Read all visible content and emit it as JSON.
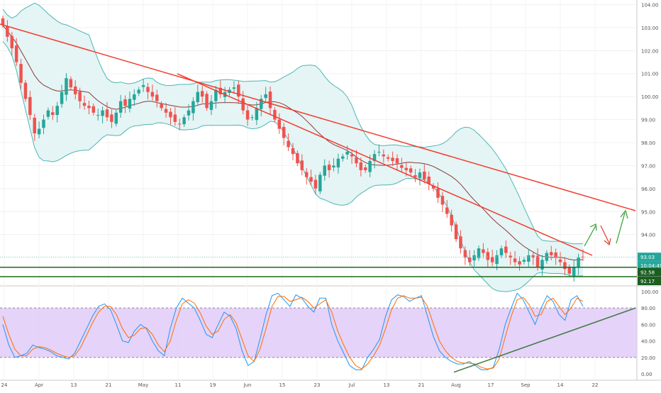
{
  "chart_data": [
    {
      "type": "candlestick",
      "title": "",
      "y_ticks": [
        "104.00",
        "103.00",
        "102.00",
        "101.00",
        "100.00",
        "99.00",
        "98.00",
        "97.00",
        "96.00",
        "95.00",
        "94.00",
        "93.00"
      ],
      "y_range": [
        91.8,
        104.2
      ],
      "x_ticks": [
        "24",
        "Apr",
        "13",
        "21",
        "May",
        "11",
        "19",
        "Jun",
        "15",
        "23",
        "Jul",
        "13",
        "21",
        "Aug",
        "17",
        "Sep",
        "14",
        "22"
      ],
      "markers": [
        {
          "label": "93.03",
          "value": 93.03,
          "kind": "last_price"
        },
        {
          "label": "10:04:49",
          "kind": "countdown"
        },
        {
          "label": "92.58",
          "value": 92.58,
          "kind": "support"
        },
        {
          "label": "92.17",
          "value": 92.17,
          "kind": "support"
        }
      ],
      "closes": [
        103.1,
        102.6,
        102.1,
        101.5,
        100.6,
        99.9,
        99.2,
        98.4,
        98.6,
        99.0,
        99.4,
        99.2,
        99.6,
        100.2,
        100.8,
        100.4,
        100.1,
        99.8,
        99.6,
        99.5,
        99.3,
        99.2,
        99.4,
        99.1,
        98.9,
        99.3,
        99.8,
        99.6,
        99.9,
        100.1,
        100.3,
        100.5,
        100.2,
        100.0,
        99.8,
        99.5,
        99.3,
        99.1,
        98.9,
        98.8,
        99.1,
        99.4,
        99.8,
        100.2,
        100.0,
        99.5,
        99.8,
        100.3,
        100.1,
        100.2,
        100.3,
        100.4,
        100.0,
        99.4,
        99.0,
        99.1,
        99.5,
        99.9,
        100.1,
        99.5,
        99.0,
        98.6,
        98.2,
        97.8,
        97.5,
        97.1,
        96.8,
        96.5,
        96.3,
        96.0,
        96.6,
        97.0,
        96.8,
        97.0,
        97.3,
        97.4,
        97.6,
        97.4,
        97.1,
        96.8,
        96.8,
        97.2,
        97.5,
        97.6,
        97.4,
        97.3,
        97.2,
        97.1,
        96.9,
        96.8,
        96.7,
        96.5,
        96.7,
        96.4,
        96.2,
        96.0,
        95.6,
        95.3,
        94.9,
        94.4,
        93.8,
        93.4,
        93.0,
        92.8,
        93.1,
        93.4,
        93.2,
        92.9,
        92.8,
        93.1,
        93.4,
        93.2,
        93.0,
        92.8,
        92.7,
        92.9,
        93.1,
        93.0,
        92.6,
        92.9,
        93.2,
        93.1,
        93.0,
        92.8,
        92.5,
        92.3,
        92.6,
        93.0,
        93.03
      ]
    },
    {
      "type": "line",
      "title": "",
      "y_ticks": [
        "100.00",
        "80.00",
        "60.00",
        "40.00",
        "20.00",
        "0.00"
      ],
      "y_range": [
        -6,
        106
      ],
      "bands": [
        20,
        80
      ],
      "series": [
        {
          "color": "#2196f3",
          "values": [
            60,
            35,
            20,
            22,
            25,
            35,
            32,
            30,
            27,
            22,
            20,
            18,
            25,
            40,
            55,
            70,
            82,
            85,
            78,
            60,
            40,
            38,
            52,
            60,
            55,
            40,
            28,
            22,
            55,
            80,
            92,
            86,
            80,
            65,
            48,
            44,
            60,
            75,
            70,
            55,
            28,
            10,
            15,
            42,
            72,
            95,
            98,
            90,
            82,
            96,
            92,
            82,
            75,
            92,
            92,
            60,
            40,
            25,
            10,
            5,
            5,
            20,
            30,
            42,
            70,
            90,
            96,
            94,
            88,
            92,
            95,
            70,
            45,
            28,
            20,
            15,
            12,
            12,
            15,
            10,
            5,
            5,
            8,
            30,
            60,
            80,
            98,
            90,
            75,
            60,
            80,
            95,
            88,
            72,
            65,
            90,
            95,
            82
          ]
        },
        {
          "color": "#ff6d00",
          "values": [
            70,
            48,
            30,
            22,
            22,
            30,
            33,
            32,
            29,
            25,
            22,
            20,
            22,
            32,
            47,
            62,
            75,
            82,
            82,
            72,
            55,
            44,
            47,
            55,
            56,
            48,
            35,
            27,
            40,
            65,
            85,
            90,
            86,
            74,
            58,
            48,
            52,
            66,
            72,
            62,
            42,
            22,
            15,
            30,
            55,
            82,
            94,
            94,
            88,
            90,
            93,
            88,
            80,
            85,
            90,
            75,
            52,
            35,
            20,
            10,
            6,
            12,
            22,
            35,
            55,
            78,
            92,
            95,
            92,
            92,
            93,
            82,
            60,
            40,
            28,
            20,
            15,
            13,
            13,
            12,
            8,
            6,
            7,
            18,
            45,
            70,
            90,
            93,
            84,
            70,
            72,
            88,
            92,
            82,
            72,
            80,
            92,
            88
          ]
        }
      ]
    }
  ],
  "colors": {
    "bull": "#26a69a",
    "bear": "#ef5350",
    "band": "#4fb6b8",
    "band_fill": "#e5f4f4",
    "ma": "#8a3b3b",
    "trend_red": "#f23b2f",
    "support_green": "#1b6b1b",
    "stoch_zone": "#dcc4f7",
    "stoch_trend": "#3c7a3c",
    "axis_text": "#555555"
  }
}
